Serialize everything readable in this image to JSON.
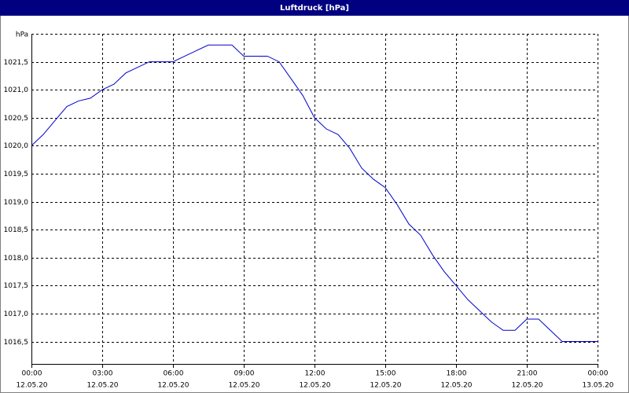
{
  "chart_data": {
    "type": "line",
    "title": "Luftdruck [hPa]",
    "y_label": "hPa",
    "x": [
      0,
      0.5,
      1,
      1.5,
      2,
      2.5,
      3,
      3.5,
      4,
      4.5,
      5,
      5.5,
      6,
      6.5,
      7,
      7.5,
      8,
      8.5,
      9,
      9.5,
      10,
      10.5,
      11,
      11.5,
      12,
      12.5,
      13,
      13.5,
      14,
      14.5,
      15,
      15.5,
      16,
      16.5,
      17,
      17.5,
      18,
      18.5,
      19,
      19.5,
      20,
      20.5,
      21,
      21.5,
      22,
      22.5,
      23,
      23.5,
      24
    ],
    "series": [
      {
        "name": "Luftdruck",
        "color": "#0000cc",
        "values": [
          1020.0,
          1020.2,
          1020.45,
          1020.7,
          1020.8,
          1020.85,
          1021.0,
          1021.1,
          1021.3,
          1021.4,
          1021.5,
          1021.5,
          1021.5,
          1021.6,
          1021.7,
          1021.8,
          1021.8,
          1021.8,
          1021.6,
          1021.6,
          1021.6,
          1021.5,
          1021.2,
          1020.9,
          1020.5,
          1020.3,
          1020.2,
          1019.95,
          1019.6,
          1019.4,
          1019.25,
          1018.95,
          1018.6,
          1018.4,
          1018.05,
          1017.75,
          1017.5,
          1017.25,
          1017.05,
          1016.85,
          1016.7,
          1016.7,
          1016.9,
          1016.9,
          1016.7,
          1016.5,
          1016.5,
          1016.5,
          1016.5
        ]
      }
    ],
    "xlim": [
      0,
      24
    ],
    "xticks": [
      {
        "value": 0,
        "label": "00:00",
        "date": "12.05.20"
      },
      {
        "value": 3,
        "label": "03:00",
        "date": "12.05.20"
      },
      {
        "value": 6,
        "label": "06:00",
        "date": "12.05.20"
      },
      {
        "value": 9,
        "label": "09:00",
        "date": "12.05.20"
      },
      {
        "value": 12,
        "label": "12:00",
        "date": "12.05.20"
      },
      {
        "value": 15,
        "label": "15:00",
        "date": "12.05.20"
      },
      {
        "value": 18,
        "label": "18:00",
        "date": "12.05.20"
      },
      {
        "value": 21,
        "label": "21:00",
        "date": "12.05.20"
      },
      {
        "value": 24,
        "label": "00:00",
        "date": "13.05.20"
      }
    ],
    "ylim": [
      1016.1,
      1022.0
    ],
    "yticks": [
      {
        "value": 1016.5,
        "label": "1016,5"
      },
      {
        "value": 1017,
        "label": "1017,0"
      },
      {
        "value": 1017.5,
        "label": "1017,5"
      },
      {
        "value": 1018,
        "label": "1018,0"
      },
      {
        "value": 1018.5,
        "label": "1018,5"
      },
      {
        "value": 1019,
        "label": "1019,0"
      },
      {
        "value": 1019.5,
        "label": "1019,5"
      },
      {
        "value": 1020,
        "label": "1020,0"
      },
      {
        "value": 1020.5,
        "label": "1020,5"
      },
      {
        "value": 1021,
        "label": "1021,0"
      },
      {
        "value": 1021.5,
        "label": "1021,5"
      }
    ],
    "grid": true
  }
}
